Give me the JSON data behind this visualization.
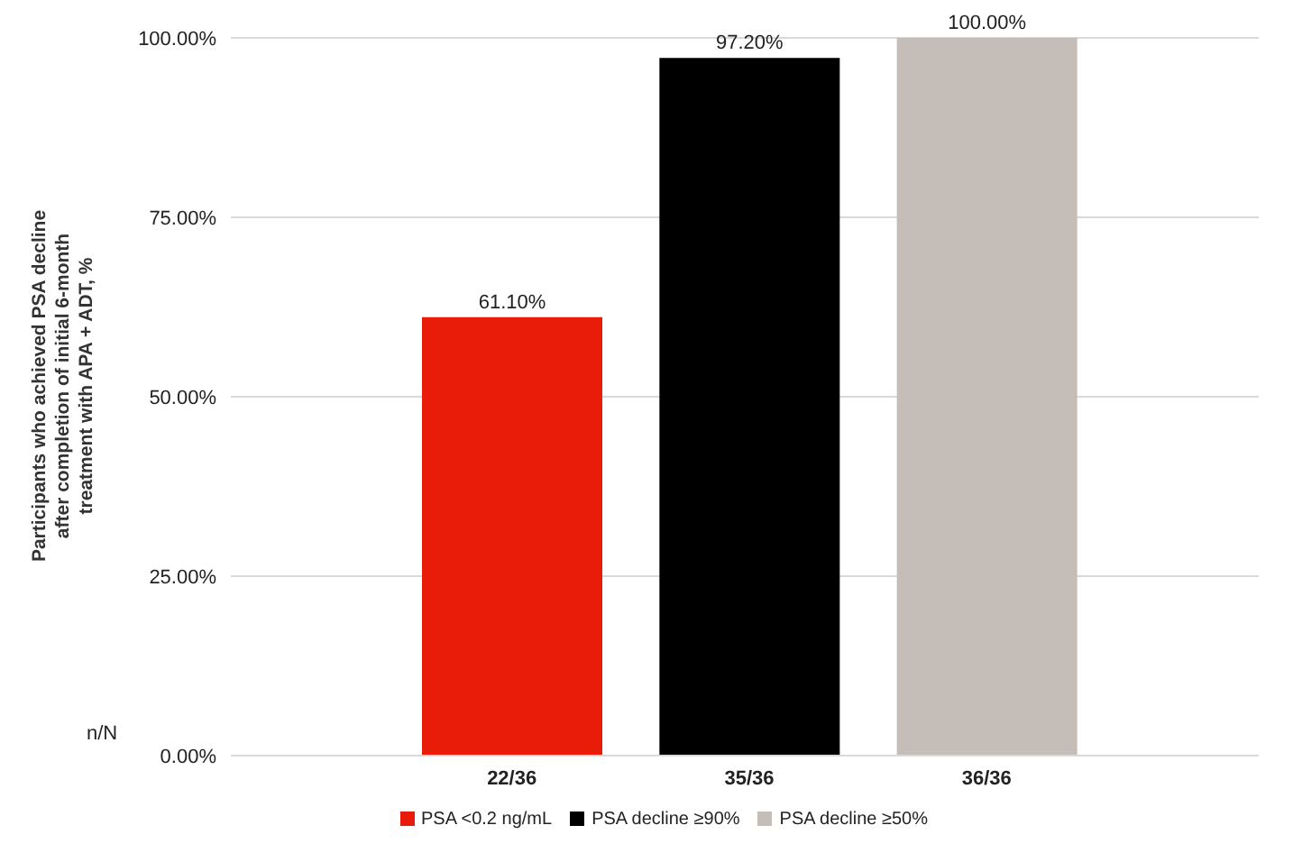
{
  "chart_data": {
    "type": "bar",
    "stacked": true,
    "ylabel": "Participants who achieved PSA decline after completion of initial 6-month treatment with APA + ADT, %",
    "xlabel": "n/N",
    "categories": [
      "22/36",
      "35/36",
      "36/36"
    ],
    "series": [
      {
        "name": "PSA <0.2 ng/mL",
        "color": "#e81c08",
        "values": [
          61.1,
          null,
          null
        ],
        "value_labels": [
          "61.10%",
          null,
          null
        ]
      },
      {
        "name": "PSA decline ≥90%",
        "color": "#000000",
        "values": [
          null,
          97.2,
          null
        ],
        "value_labels": [
          null,
          "97.20%",
          null
        ]
      },
      {
        "name": "PSA decline ≥50%",
        "color": "#c5bdb7",
        "values": [
          null,
          null,
          100
        ],
        "value_labels": [
          null,
          null,
          "100.00%"
        ]
      }
    ],
    "ylim": [
      0,
      100
    ],
    "yticks": [
      {
        "value": 0,
        "label": "0.00%"
      },
      {
        "value": 25,
        "label": "25.00%"
      },
      {
        "value": 50,
        "label": "50.00%"
      },
      {
        "value": 75,
        "label": "75.00%"
      },
      {
        "value": 100,
        "label": "100.00%"
      }
    ],
    "grid": "y",
    "legend": "bottom"
  }
}
